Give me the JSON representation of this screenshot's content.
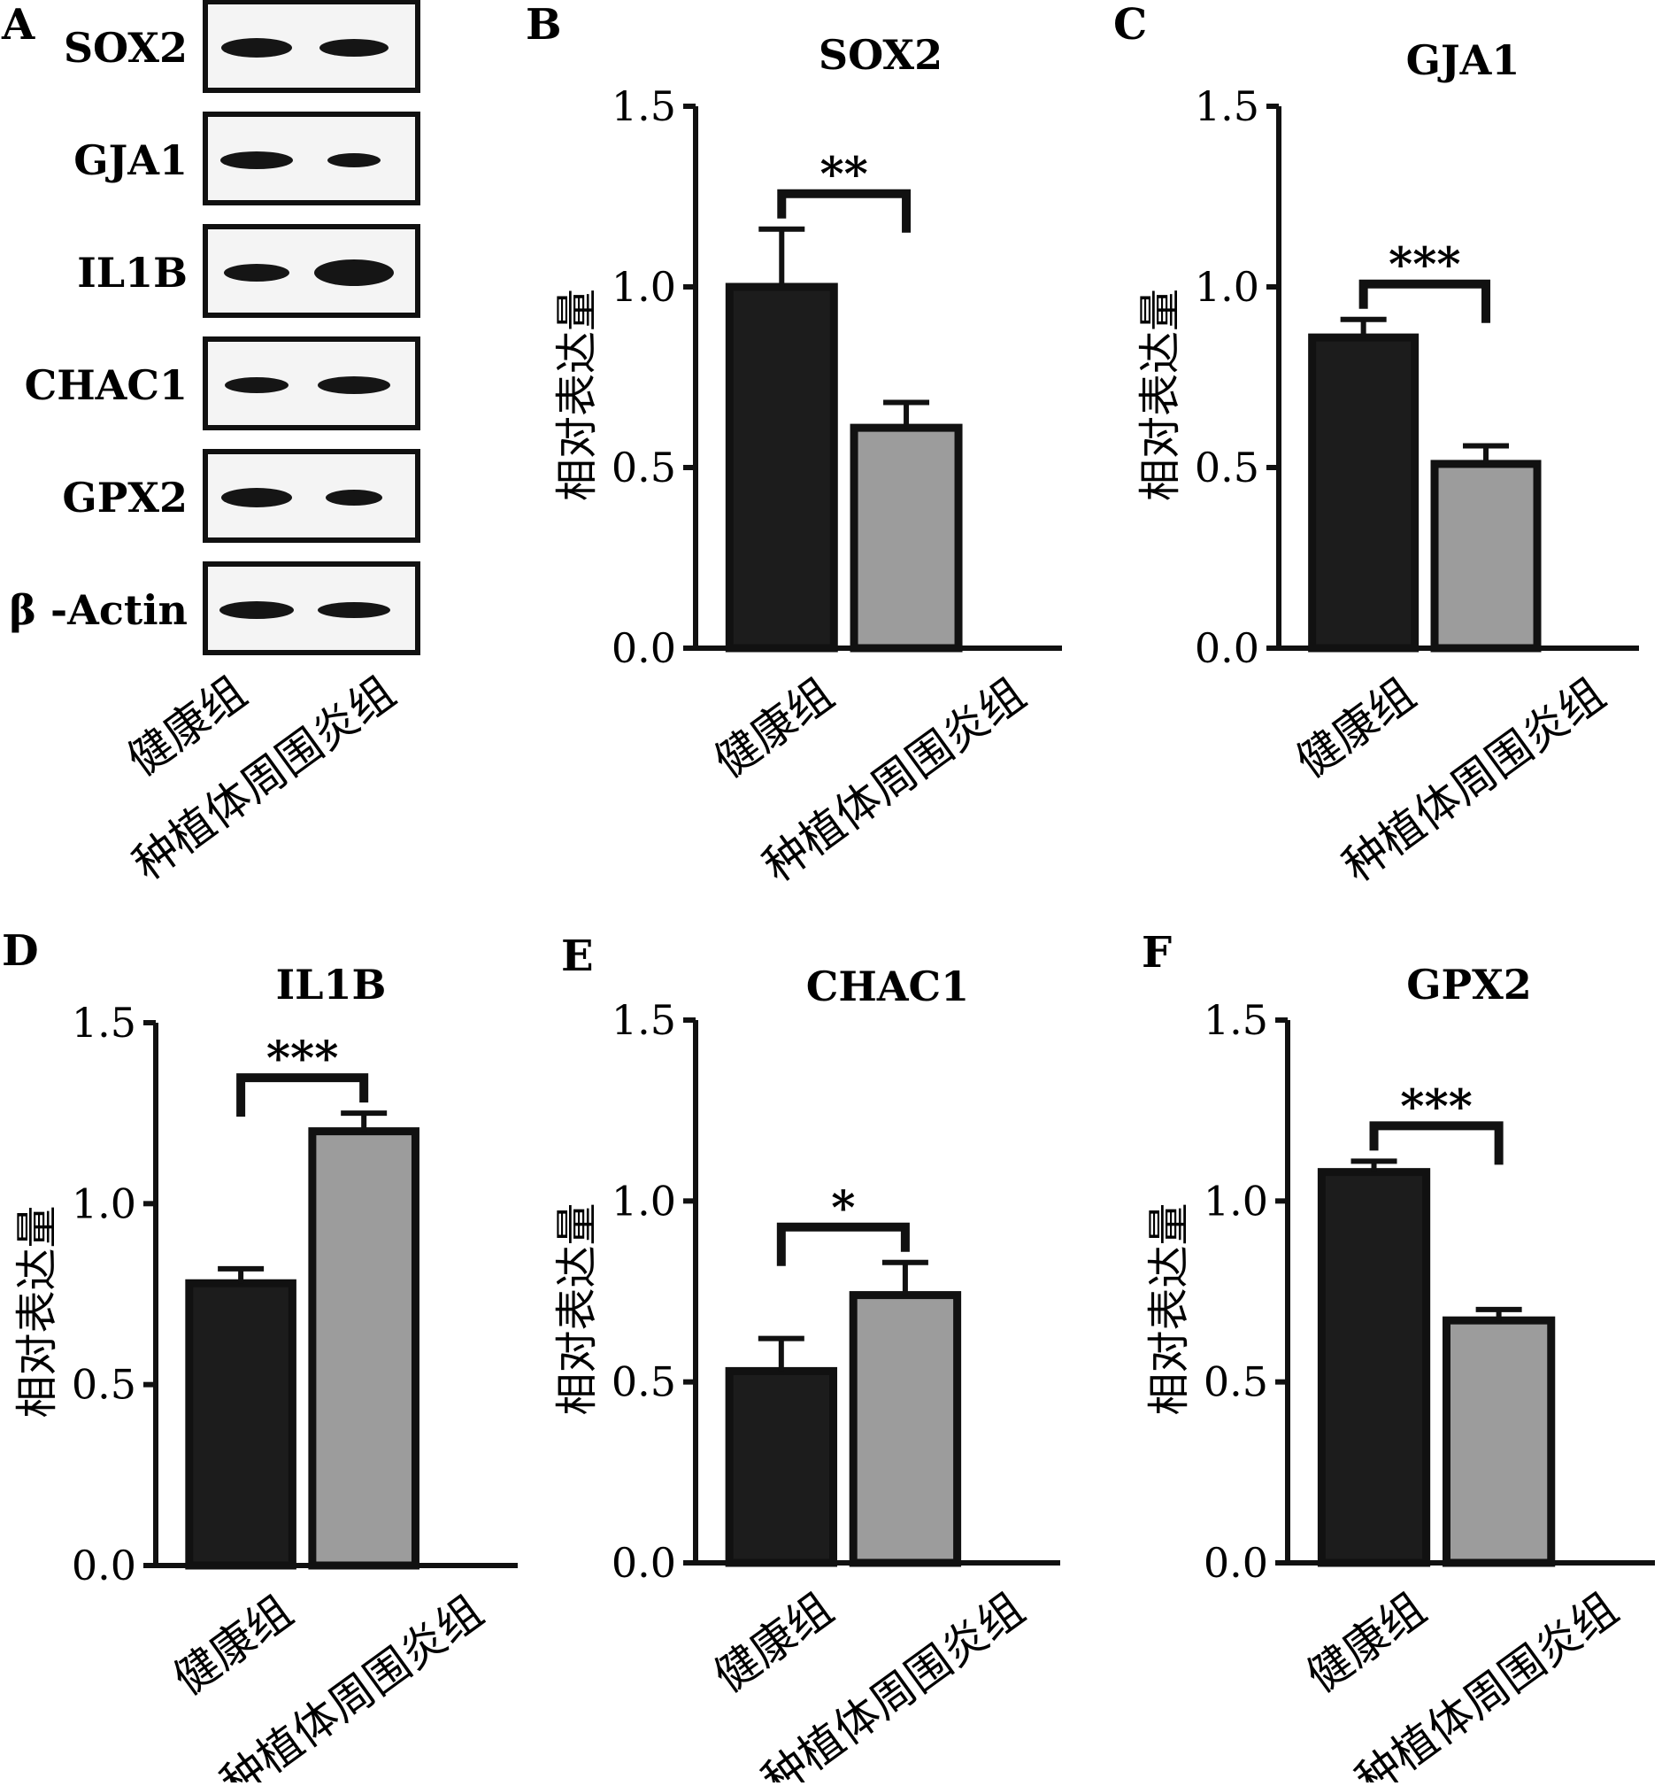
{
  "figure": {
    "blot_panel": {
      "letter": "A",
      "bands": [
        "SOX2",
        "GJA1",
        "IL1B",
        "CHAC1",
        "GPX2",
        "β -Actin"
      ],
      "group_labels": [
        "健康组",
        "种植体周围炎组"
      ]
    },
    "colors": {
      "healthy_bar": "#1c1c1c",
      "disease_bar": "#9c9c9c",
      "axis": "#111111",
      "band": "#151515"
    }
  },
  "chart_data": [
    {
      "type": "bar",
      "panel": "B",
      "title": "SOX2",
      "ylabel": "相对表达量",
      "xlabel": "",
      "categories": [
        "健康组",
        "种植体周围炎组"
      ],
      "values": [
        1.0,
        0.61
      ],
      "errors": [
        0.16,
        0.07
      ],
      "ylim": [
        0,
        1.5
      ],
      "yticks": [
        "0.0",
        "0.5",
        "1.0",
        "1.5"
      ],
      "significance": "**"
    },
    {
      "type": "bar",
      "panel": "C",
      "title": "GJA1",
      "ylabel": "相对表达量",
      "xlabel": "",
      "categories": [
        "健康组",
        "种植体周围炎组"
      ],
      "values": [
        0.86,
        0.51
      ],
      "errors": [
        0.05,
        0.05
      ],
      "ylim": [
        0,
        1.5
      ],
      "yticks": [
        "0.0",
        "0.5",
        "1.0",
        "1.5"
      ],
      "significance": "***"
    },
    {
      "type": "bar",
      "panel": "D",
      "title": "IL1B",
      "ylabel": "相对表达量",
      "xlabel": "",
      "categories": [
        "健康组",
        "种植体周围炎组"
      ],
      "values": [
        0.78,
        1.2
      ],
      "errors": [
        0.04,
        0.05
      ],
      "ylim": [
        0,
        1.5
      ],
      "yticks": [
        "0.0",
        "0.5",
        "1.0",
        "1.5"
      ],
      "significance": "***"
    },
    {
      "type": "bar",
      "panel": "E",
      "title": "CHAC1",
      "ylabel": "相对表达量",
      "xlabel": "",
      "categories": [
        "健康组",
        "种植体周围炎组"
      ],
      "values": [
        0.53,
        0.74
      ],
      "errors": [
        0.09,
        0.09
      ],
      "ylim": [
        0,
        1.5
      ],
      "yticks": [
        "0.0",
        "0.5",
        "1.0",
        "1.5"
      ],
      "significance": "*"
    },
    {
      "type": "bar",
      "panel": "F",
      "title": "GPX2",
      "ylabel": "相对表达量",
      "xlabel": "",
      "categories": [
        "健康组",
        "种植体周围炎组"
      ],
      "values": [
        1.08,
        0.67
      ],
      "errors": [
        0.03,
        0.03
      ],
      "ylim": [
        0,
        1.5
      ],
      "yticks": [
        "0.0",
        "0.5",
        "1.0",
        "1.5"
      ],
      "significance": "***"
    }
  ]
}
